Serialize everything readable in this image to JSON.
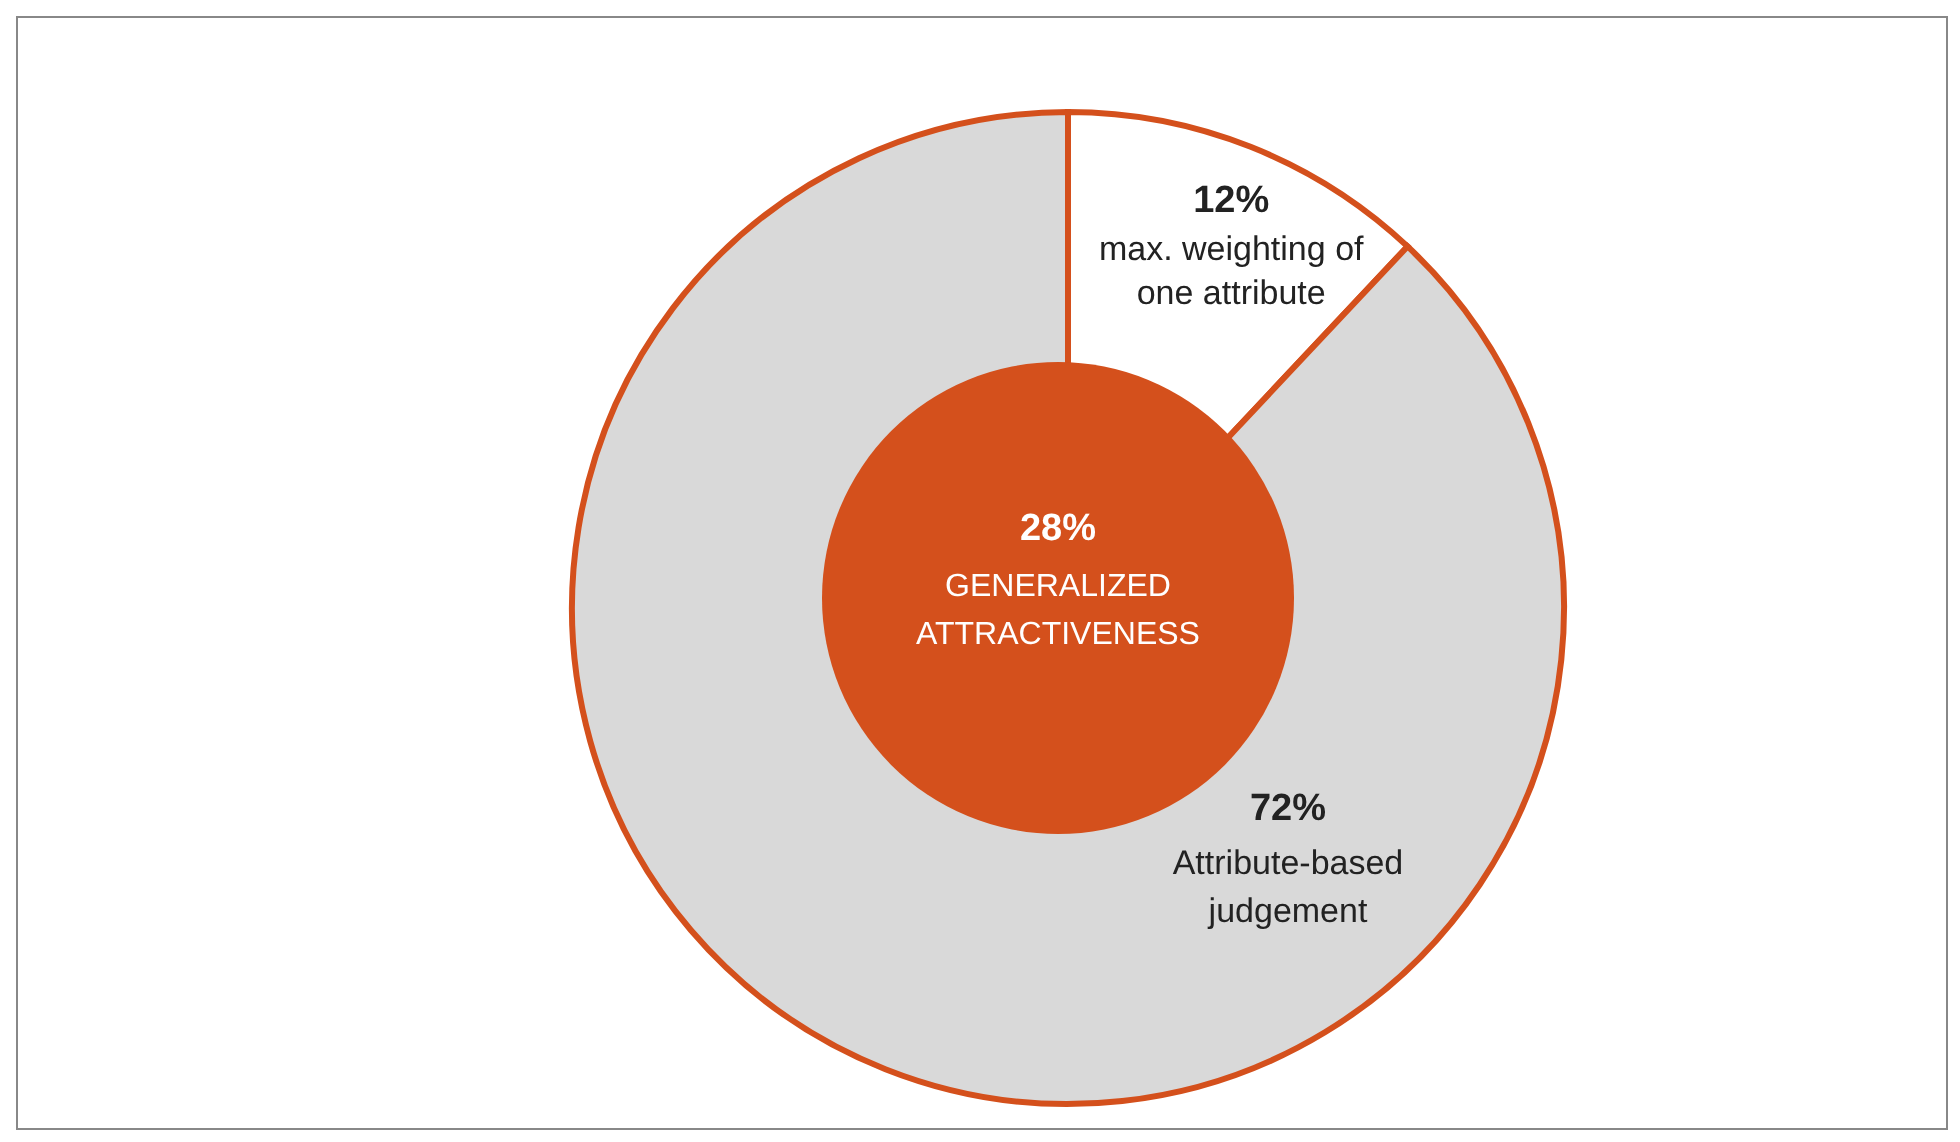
{
  "chart_data": {
    "type": "pie",
    "categories": [
      "max. weighting of one attribute",
      null
    ],
    "values": [
      12,
      88
    ],
    "colors": [
      "#ffffff",
      "#d9d9d9"
    ],
    "value_labels": [
      "12%",
      null
    ],
    "annotations": [
      "72%",
      "Attribute-based judgement",
      "28%",
      "GENERALIZED ATTRACTIVENESS"
    ]
  }
}
